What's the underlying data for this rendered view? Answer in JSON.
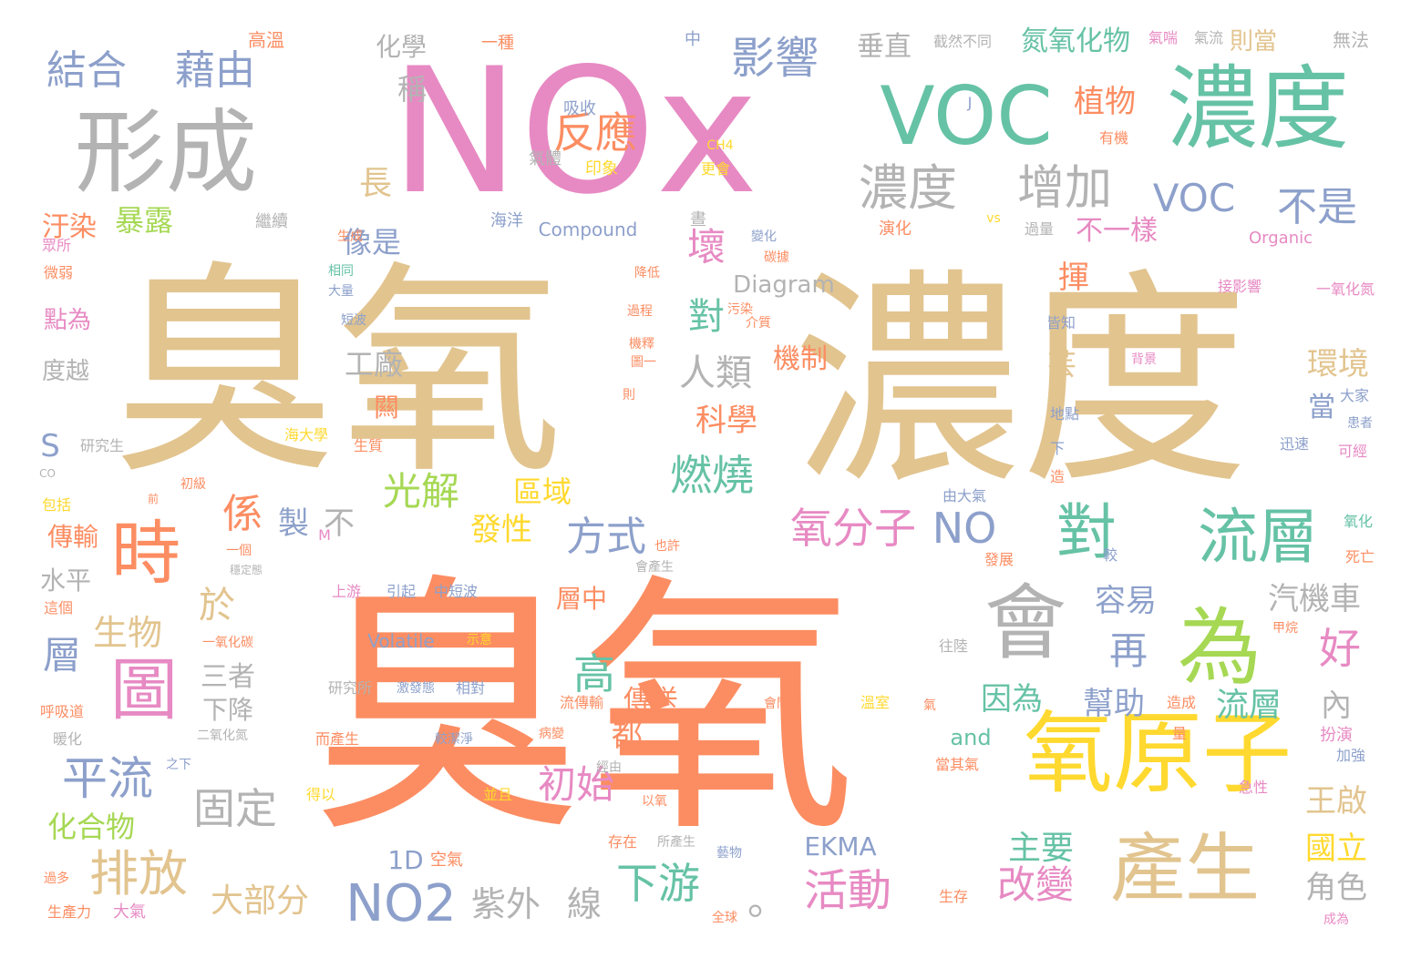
{
  "palette": {
    "tan": "#e2c48f",
    "salmon": "#fc8d62",
    "pink": "#e78ac3",
    "teal": "#66c2a5",
    "blue": "#8da0cb",
    "green": "#a6d854",
    "yellow": "#ffd92f",
    "gray": "#b3b3b3"
  },
  "words": [
    {
      "text": "臭氧",
      "color": "tan"
    },
    {
      "text": "臭氧",
      "color": "salmon"
    },
    {
      "text": "濃度",
      "color": "tan"
    },
    {
      "text": "NOx",
      "color": "pink"
    },
    {
      "text": "VOC",
      "color": "teal"
    },
    {
      "text": "濃度",
      "color": "teal"
    },
    {
      "text": "形成",
      "color": "gray"
    },
    {
      "text": "氧原子",
      "color": "yellow"
    },
    {
      "text": "產生",
      "color": "tan"
    },
    {
      "text": "為",
      "color": "green"
    },
    {
      "text": "會",
      "color": "gray"
    },
    {
      "text": "流層",
      "color": "teal"
    },
    {
      "text": "對",
      "color": "teal"
    },
    {
      "text": "時",
      "color": "salmon"
    },
    {
      "text": "圖",
      "color": "pink"
    },
    {
      "text": "濃度",
      "color": "gray"
    },
    {
      "text": "增加",
      "color": "gray"
    },
    {
      "text": "VOC",
      "color": "blue"
    },
    {
      "text": "不是",
      "color": "blue"
    },
    {
      "text": "影響",
      "color": "blue"
    },
    {
      "text": "反應",
      "color": "salmon"
    },
    {
      "text": "結合",
      "color": "blue"
    },
    {
      "text": "藉由",
      "color": "blue"
    },
    {
      "text": "氧分子",
      "color": "pink"
    },
    {
      "text": "NO",
      "color": "blue"
    },
    {
      "text": "NO2",
      "color": "blue"
    },
    {
      "text": "排放",
      "color": "tan"
    },
    {
      "text": "平流",
      "color": "blue"
    },
    {
      "text": "光解",
      "color": "green"
    },
    {
      "text": "燃燒",
      "color": "teal"
    },
    {
      "text": "係",
      "color": "salmon"
    },
    {
      "text": "方式",
      "color": "blue"
    },
    {
      "text": "初始",
      "color": "pink"
    },
    {
      "text": "固定",
      "color": "gray"
    },
    {
      "text": "活動",
      "color": "pink"
    },
    {
      "text": "下游",
      "color": "teal"
    },
    {
      "text": "改變",
      "color": "pink"
    },
    {
      "text": "紫外",
      "color": "gray"
    },
    {
      "text": "線",
      "color": "gray"
    },
    {
      "text": "大部分",
      "color": "tan"
    },
    {
      "text": "人類",
      "color": "gray"
    },
    {
      "text": "科學",
      "color": "salmon"
    },
    {
      "text": "高",
      "color": "teal"
    },
    {
      "text": "再",
      "color": "blue"
    },
    {
      "text": "好",
      "color": "pink"
    },
    {
      "text": "環境",
      "color": "tan"
    },
    {
      "text": "容易",
      "color": "blue"
    },
    {
      "text": "汽機車",
      "color": "gray"
    },
    {
      "text": "流層",
      "color": "teal"
    },
    {
      "text": "內",
      "color": "gray"
    },
    {
      "text": "因為",
      "color": "teal"
    },
    {
      "text": "幫助",
      "color": "blue"
    },
    {
      "text": "主要",
      "color": "teal"
    },
    {
      "text": "王啟",
      "color": "tan"
    },
    {
      "text": "國立",
      "color": "yellow"
    },
    {
      "text": "角色",
      "color": "gray"
    },
    {
      "text": "壞",
      "color": "pink"
    },
    {
      "text": "對",
      "color": "teal"
    },
    {
      "text": "長",
      "color": "tan"
    },
    {
      "text": "像是",
      "color": "blue"
    },
    {
      "text": "工廠",
      "color": "gray"
    },
    {
      "text": "生物",
      "color": "tan"
    },
    {
      "text": "層",
      "color": "blue"
    },
    {
      "text": "於",
      "color": "tan"
    },
    {
      "text": "製",
      "color": "blue"
    },
    {
      "text": "不",
      "color": "gray"
    },
    {
      "text": "發性",
      "color": "yellow"
    },
    {
      "text": "區域",
      "color": "yellow"
    },
    {
      "text": "都",
      "color": "salmon"
    },
    {
      "text": "傳送",
      "color": "salmon"
    },
    {
      "text": "三者",
      "color": "gray"
    },
    {
      "text": "下降",
      "color": "gray"
    },
    {
      "text": "化合物",
      "color": "green"
    },
    {
      "text": "暴露",
      "color": "green"
    },
    {
      "text": "汙染",
      "color": "salmon"
    },
    {
      "text": "化學",
      "color": "gray"
    },
    {
      "text": "稱",
      "color": "gray"
    },
    {
      "text": "垂直",
      "color": "gray"
    },
    {
      "text": "氮氧化物",
      "color": "teal"
    },
    {
      "text": "則當",
      "color": "tan"
    },
    {
      "text": "植物",
      "color": "salmon"
    },
    {
      "text": "不一樣",
      "color": "pink"
    },
    {
      "text": "揮",
      "color": "salmon"
    },
    {
      "text": "芸",
      "color": "tan"
    },
    {
      "text": "當",
      "color": "blue"
    },
    {
      "text": "機制",
      "color": "salmon"
    },
    {
      "text": "層中",
      "color": "salmon"
    },
    {
      "text": "傳輸",
      "color": "salmon"
    },
    {
      "text": "水平",
      "color": "gray"
    },
    {
      "text": "點為",
      "color": "pink"
    },
    {
      "text": "度越",
      "color": "gray"
    },
    {
      "text": "闗",
      "color": "salmon"
    },
    {
      "text": "S",
      "color": "blue"
    },
    {
      "text": "and",
      "color": "teal"
    },
    {
      "text": "1D",
      "color": "blue"
    },
    {
      "text": "EKMA",
      "color": "blue"
    },
    {
      "text": "Diagram",
      "color": "gray"
    },
    {
      "text": "Volatile",
      "color": "blue"
    },
    {
      "text": "Compound",
      "color": "blue"
    },
    {
      "text": "Organic",
      "color": "pink"
    },
    {
      "text": "CH4",
      "color": "yellow"
    },
    {
      "text": "vs",
      "color": "yellow"
    },
    {
      "text": "J",
      "color": "blue"
    },
    {
      "text": "CO",
      "color": "gray"
    },
    {
      "text": "M",
      "color": "pink"
    },
    {
      "text": "。",
      "color": "gray"
    },
    {
      "text": "高溫",
      "color": "salmon"
    },
    {
      "text": "一種",
      "color": "salmon"
    },
    {
      "text": "中",
      "color": "blue"
    },
    {
      "text": "截然不同",
      "color": "gray"
    },
    {
      "text": "氣喘",
      "color": "pink"
    },
    {
      "text": "氣流",
      "color": "gray"
    },
    {
      "text": "無法",
      "color": "gray"
    },
    {
      "text": "吸收",
      "color": "blue"
    },
    {
      "text": "氣體",
      "color": "gray"
    },
    {
      "text": "印象",
      "color": "yellow"
    },
    {
      "text": "更會",
      "color": "yellow"
    },
    {
      "text": "有機",
      "color": "salmon"
    },
    {
      "text": "海洋",
      "color": "blue"
    },
    {
      "text": "晝",
      "color": "gray"
    },
    {
      "text": "繼續",
      "color": "gray"
    },
    {
      "text": "演化",
      "color": "salmon"
    },
    {
      "text": "過量",
      "color": "gray"
    },
    {
      "text": "變化",
      "color": "blue"
    },
    {
      "text": "碳據",
      "color": "salmon"
    },
    {
      "text": "眾所",
      "color": "pink"
    },
    {
      "text": "生成",
      "color": "salmon"
    },
    {
      "text": "相同",
      "color": "teal"
    },
    {
      "text": "大量",
      "color": "blue"
    },
    {
      "text": "微弱",
      "color": "salmon"
    },
    {
      "text": "短波",
      "color": "blue"
    },
    {
      "text": "降低",
      "color": "salmon"
    },
    {
      "text": "污染",
      "color": "salmon"
    },
    {
      "text": "過程",
      "color": "salmon"
    },
    {
      "text": "介質",
      "color": "salmon"
    },
    {
      "text": "接影響",
      "color": "pink"
    },
    {
      "text": "一氧化氮",
      "color": "pink"
    },
    {
      "text": "皆知",
      "color": "blue"
    },
    {
      "text": "機釋",
      "color": "salmon"
    },
    {
      "text": "圖一",
      "color": "salmon"
    },
    {
      "text": "背景",
      "color": "pink"
    },
    {
      "text": "大家",
      "color": "blue"
    },
    {
      "text": "研究生",
      "color": "gray"
    },
    {
      "text": "生質",
      "color": "salmon"
    },
    {
      "text": "海大學",
      "color": "yellow"
    },
    {
      "text": "則",
      "color": "salmon"
    },
    {
      "text": "地點",
      "color": "blue"
    },
    {
      "text": "患者",
      "color": "blue"
    },
    {
      "text": "可經",
      "color": "pink"
    },
    {
      "text": "迅速",
      "color": "blue"
    },
    {
      "text": "下",
      "color": "blue"
    },
    {
      "text": "造",
      "color": "salmon"
    },
    {
      "text": "初級",
      "color": "salmon"
    },
    {
      "text": "前",
      "color": "salmon"
    },
    {
      "text": "包括",
      "color": "yellow"
    },
    {
      "text": "由大氣",
      "color": "blue"
    },
    {
      "text": "也許",
      "color": "salmon"
    },
    {
      "text": "氧化",
      "color": "teal"
    },
    {
      "text": "一個",
      "color": "salmon"
    },
    {
      "text": "穩定態",
      "color": "gray"
    },
    {
      "text": "較",
      "color": "blue"
    },
    {
      "text": "發展",
      "color": "salmon"
    },
    {
      "text": "死亡",
      "color": "salmon"
    },
    {
      "text": "會產生",
      "color": "gray"
    },
    {
      "text": "上游",
      "color": "pink"
    },
    {
      "text": "引起",
      "color": "blue"
    },
    {
      "text": "中短波",
      "color": "blue"
    },
    {
      "text": "這個",
      "color": "salmon"
    },
    {
      "text": "一氧化碳",
      "color": "salmon"
    },
    {
      "text": "示意",
      "color": "yellow"
    },
    {
      "text": "往陸",
      "color": "gray"
    },
    {
      "text": "甲烷",
      "color": "salmon"
    },
    {
      "text": "研究所",
      "color": "gray"
    },
    {
      "text": "激發態",
      "color": "blue"
    },
    {
      "text": "相對",
      "color": "blue"
    },
    {
      "text": "流傳輸",
      "color": "salmon"
    },
    {
      "text": "會間",
      "color": "salmon"
    },
    {
      "text": "溫室",
      "color": "yellow"
    },
    {
      "text": "造成",
      "color": "salmon"
    },
    {
      "text": "扮演",
      "color": "pink"
    },
    {
      "text": "呼吸道",
      "color": "salmon"
    },
    {
      "text": "暖化",
      "color": "gray"
    },
    {
      "text": "二氧化氮",
      "color": "gray"
    },
    {
      "text": "而產生",
      "color": "salmon"
    },
    {
      "text": "較潔淨",
      "color": "blue"
    },
    {
      "text": "病變",
      "color": "salmon"
    },
    {
      "text": "經由",
      "color": "gray"
    },
    {
      "text": "氣",
      "color": "salmon"
    },
    {
      "text": "量",
      "color": "salmon"
    },
    {
      "text": "加強",
      "color": "blue"
    },
    {
      "text": "之下",
      "color": "blue"
    },
    {
      "text": "得以",
      "color": "yellow"
    },
    {
      "text": "並且",
      "color": "yellow"
    },
    {
      "text": "以氧",
      "color": "salmon"
    },
    {
      "text": "當其氣",
      "color": "salmon"
    },
    {
      "text": "急性",
      "color": "pink"
    },
    {
      "text": "存在",
      "color": "salmon"
    },
    {
      "text": "所產生",
      "color": "gray"
    },
    {
      "text": "藝物",
      "color": "blue"
    },
    {
      "text": "空氣",
      "color": "salmon"
    },
    {
      "text": "過多",
      "color": "salmon"
    },
    {
      "text": "生產力",
      "color": "salmon"
    },
    {
      "text": "大氣",
      "color": "pink"
    },
    {
      "text": "全球",
      "color": "salmon"
    },
    {
      "text": "生存",
      "color": "salmon"
    },
    {
      "text": "成為",
      "color": "pink"
    }
  ]
}
